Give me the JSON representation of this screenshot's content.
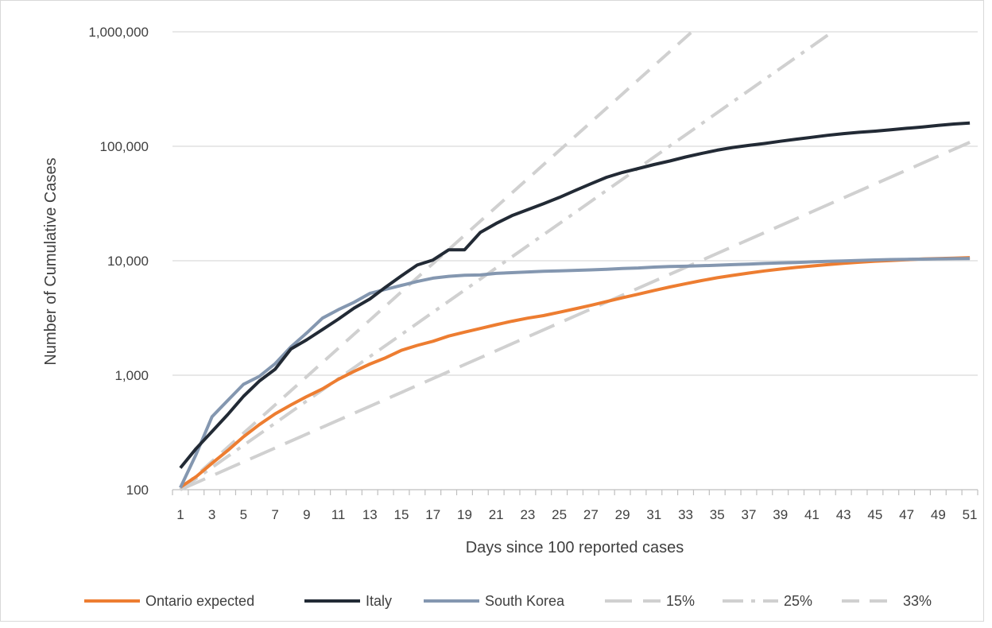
{
  "chart_data": {
    "type": "line",
    "y_scale": "log",
    "xlabel": "Days since 100 reported cases",
    "ylabel": "Number of  Cumulative Cases",
    "xlim": [
      1,
      51
    ],
    "ylim": [
      100,
      1000000
    ],
    "x_ticks": [
      1,
      3,
      5,
      7,
      9,
      11,
      13,
      15,
      17,
      19,
      21,
      23,
      25,
      27,
      29,
      31,
      33,
      35,
      37,
      39,
      41,
      43,
      45,
      47,
      49,
      51
    ],
    "x_tick_labels": [
      "1",
      "3",
      "5",
      "7",
      "9",
      "11",
      "13",
      "15",
      "17",
      "19",
      "21",
      "23",
      "25",
      "27",
      "29",
      "31",
      "33",
      "35",
      "37",
      "39",
      "41",
      "43",
      "45",
      "47",
      "49",
      "51"
    ],
    "y_ticks": [
      100,
      1000,
      10000,
      100000,
      1000000
    ],
    "y_tick_labels": [
      "100",
      "1,000",
      "10,000",
      "100,000",
      "1,000,000"
    ],
    "grid": "horizontal",
    "legend_position": "bottom",
    "series": [
      {
        "name": "Ontario expected",
        "color": "#ed7d31",
        "style": "solid",
        "x": [
          1,
          2,
          3,
          4,
          5,
          6,
          7,
          8,
          9,
          10,
          11,
          12,
          13,
          14,
          15,
          16,
          17,
          18,
          19,
          20,
          21,
          22,
          23,
          24,
          25,
          26,
          27,
          28,
          29,
          30,
          31,
          32,
          33,
          34,
          35,
          36,
          37,
          38,
          39,
          40,
          41,
          42,
          43,
          44,
          45,
          46,
          47,
          48,
          49,
          50,
          51
        ],
        "values": [
          105,
          130,
          170,
          220,
          290,
          370,
          460,
          550,
          650,
          760,
          920,
          1080,
          1250,
          1420,
          1650,
          1820,
          1980,
          2200,
          2380,
          2560,
          2760,
          2960,
          3150,
          3320,
          3550,
          3800,
          4080,
          4400,
          4750,
          5100,
          5500,
          5900,
          6300,
          6700,
          7100,
          7450,
          7800,
          8150,
          8450,
          8750,
          9000,
          9250,
          9500,
          9700,
          9900,
          10050,
          10200,
          10350,
          10450,
          10550,
          10650
        ]
      },
      {
        "name": "Italy",
        "color": "#222a35",
        "style": "solid",
        "x": [
          1,
          2,
          3,
          4,
          5,
          6,
          7,
          8,
          9,
          10,
          11,
          12,
          13,
          14,
          15,
          16,
          17,
          18,
          19,
          20,
          21,
          22,
          23,
          24,
          25,
          26,
          27,
          28,
          29,
          30,
          31,
          32,
          33,
          34,
          35,
          36,
          37,
          38,
          39,
          40,
          41,
          42,
          43,
          44,
          45,
          46,
          47,
          48,
          49,
          50,
          51
        ],
        "values": [
          155,
          229,
          322,
          453,
          655,
          888,
          1128,
          1694,
          2036,
          2502,
          3089,
          3858,
          4636,
          5883,
          7375,
          9172,
          10149,
          12462,
          12462,
          17660,
          21157,
          24747,
          27980,
          31506,
          35713,
          41035,
          47021,
          53578,
          59138,
          63927,
          69176,
          74386,
          80539,
          86498,
          92472,
          97689,
          101739,
          105792,
          110574,
          115242,
          119827,
          124632,
          128948,
          132547,
          135586,
          139422,
          143626,
          147577,
          152271,
          156363,
          159516
        ]
      },
      {
        "name": "South Korea",
        "color": "#8497b0",
        "style": "solid",
        "x": [
          1,
          2,
          3,
          4,
          5,
          6,
          7,
          8,
          9,
          10,
          11,
          12,
          13,
          14,
          15,
          16,
          17,
          18,
          19,
          20,
          21,
          22,
          23,
          24,
          25,
          26,
          27,
          28,
          29,
          30,
          31,
          32,
          33,
          34,
          35,
          36,
          37,
          38,
          39,
          40,
          41,
          42,
          43,
          44,
          45,
          46,
          47,
          48,
          49,
          50,
          51
        ],
        "values": [
          104,
          204,
          433,
          602,
          833,
          977,
          1261,
          1766,
          2337,
          3150,
          3736,
          4335,
          5186,
          5621,
          6088,
          6593,
          7041,
          7313,
          7478,
          7513,
          7755,
          7869,
          7979,
          8086,
          8162,
          8236,
          8320,
          8413,
          8565,
          8652,
          8799,
          8897,
          8961,
          9037,
          9137,
          9241,
          9332,
          9478,
          9583,
          9661,
          9786,
          9887,
          9976,
          10062,
          10156,
          10237,
          10284,
          10331,
          10384,
          10423,
          10450
        ]
      },
      {
        "name": "15%",
        "color": "#d0d0d0",
        "style": "long-dash",
        "x": [
          1,
          51
        ],
        "values": [
          100,
          108366
        ]
      },
      {
        "name": "25%",
        "color": "#d0d0d0",
        "style": "dash-dot",
        "x": [
          1,
          42.3
        ],
        "values": [
          100,
          1000000
        ]
      },
      {
        "name": "33%",
        "color": "#d0d0d0",
        "style": "dash",
        "x": [
          1,
          33.4
        ],
        "values": [
          100,
          1000000
        ]
      }
    ]
  }
}
